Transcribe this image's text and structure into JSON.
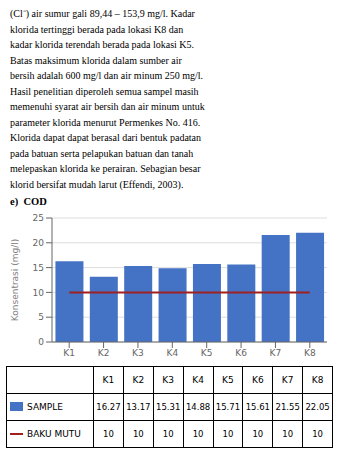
{
  "chart_data": {
    "type": "bar",
    "title": "e)  COD",
    "annotations": [
      "(Cl⁻) air sumur gali 89,44 – 153,9 mg/l. Kadar",
      "klorida tertinggi berada pada lokasi K8 dan",
      "kadar klorida terendah berada pada lokasi K5.",
      "Batas maksimum klorida dalam sumber air",
      "bersih adalah 600 mg/l dan air minum 250 mg/l.",
      "Hasil penelitian diperoleh semua sampel masih",
      "memenuhi syarat air bersih dan air minum untuk",
      "parameter klorida menurut Permenkes No. 416.",
      "Klorida dapat dapat berasal dari bentuk padatan",
      "pada batuan serta pelapukan batuan dan tanah",
      "melepaskan klorida ke perairan. Sebagian besar",
      "klorid bersifat mudah larut (Effendi, 2003)."
    ],
    "categories": [
      "K1",
      "K2",
      "K3",
      "K4",
      "K5",
      "K6",
      "K7",
      "K8"
    ],
    "series": [
      {
        "name": "SAMPLE",
        "type": "bar",
        "color": "#4472C4",
        "values": [
          16.27,
          13.17,
          15.31,
          14.88,
          15.71,
          15.61,
          21.55,
          22.05
        ]
      },
      {
        "name": "BAKU MUTU",
        "type": "line",
        "color": "#A02020",
        "values": [
          10,
          10,
          10,
          10,
          10,
          10,
          10,
          10
        ]
      }
    ],
    "ylabel": "Konsentrasi (mg/l)",
    "ylim": [
      0,
      25
    ],
    "yticks": [
      0,
      5,
      10,
      15,
      20,
      25
    ],
    "grid": true,
    "legend": "bottom"
  }
}
